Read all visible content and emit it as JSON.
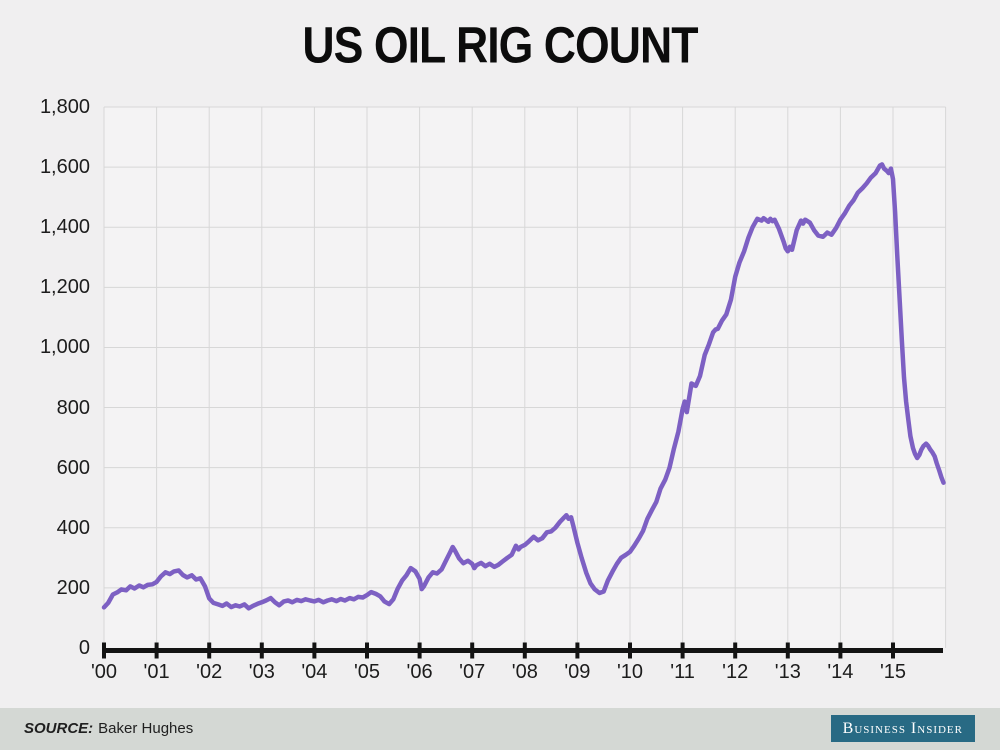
{
  "chart_data": {
    "type": "line",
    "title": "US OIL RIG COUNT",
    "xlabel": "",
    "ylabel": "",
    "x_domain": [
      2000,
      2016
    ],
    "ylim": [
      0,
      1800
    ],
    "grid": true,
    "legend": "none",
    "colors": {
      "line": "#7d60c3",
      "grid": "#d7d7d7",
      "axis": "#131313",
      "plot_bg": "#f4f3f4"
    },
    "y_ticks": [
      {
        "value": 0,
        "label": "0"
      },
      {
        "value": 200,
        "label": "200"
      },
      {
        "value": 400,
        "label": "400"
      },
      {
        "value": 600,
        "label": "600"
      },
      {
        "value": 800,
        "label": "800"
      },
      {
        "value": 1000,
        "label": "1,000"
      },
      {
        "value": 1200,
        "label": "1,200"
      },
      {
        "value": 1400,
        "label": "1,400"
      },
      {
        "value": 1600,
        "label": "1,600"
      },
      {
        "value": 1800,
        "label": "1,800"
      }
    ],
    "x_ticks": [
      {
        "value": 2000,
        "label": "'00"
      },
      {
        "value": 2001,
        "label": "'01"
      },
      {
        "value": 2002,
        "label": "'02"
      },
      {
        "value": 2003,
        "label": "'03"
      },
      {
        "value": 2004,
        "label": "'04"
      },
      {
        "value": 2005,
        "label": "'05"
      },
      {
        "value": 2006,
        "label": "'06"
      },
      {
        "value": 2007,
        "label": "'07"
      },
      {
        "value": 2008,
        "label": "'08"
      },
      {
        "value": 2009,
        "label": "'09"
      },
      {
        "value": 2010,
        "label": "'10"
      },
      {
        "value": 2011,
        "label": "'11"
      },
      {
        "value": 2012,
        "label": "'12"
      },
      {
        "value": 2013,
        "label": "'13"
      },
      {
        "value": 2014,
        "label": "'14"
      },
      {
        "value": 2015,
        "label": "'15"
      }
    ],
    "series": [
      {
        "name": "US oil rig count",
        "points": [
          [
            2000.0,
            135
          ],
          [
            2000.08,
            150
          ],
          [
            2000.17,
            178
          ],
          [
            2000.25,
            185
          ],
          [
            2000.33,
            195
          ],
          [
            2000.42,
            192
          ],
          [
            2000.5,
            205
          ],
          [
            2000.58,
            198
          ],
          [
            2000.67,
            208
          ],
          [
            2000.75,
            202
          ],
          [
            2000.83,
            210
          ],
          [
            2000.92,
            212
          ],
          [
            2001.0,
            220
          ],
          [
            2001.08,
            238
          ],
          [
            2001.17,
            252
          ],
          [
            2001.25,
            246
          ],
          [
            2001.33,
            255
          ],
          [
            2001.42,
            258
          ],
          [
            2001.5,
            243
          ],
          [
            2001.58,
            235
          ],
          [
            2001.67,
            242
          ],
          [
            2001.75,
            228
          ],
          [
            2001.83,
            232
          ],
          [
            2001.92,
            205
          ],
          [
            2002.0,
            165
          ],
          [
            2002.08,
            150
          ],
          [
            2002.17,
            145
          ],
          [
            2002.25,
            140
          ],
          [
            2002.33,
            148
          ],
          [
            2002.42,
            136
          ],
          [
            2002.5,
            142
          ],
          [
            2002.58,
            138
          ],
          [
            2002.67,
            145
          ],
          [
            2002.75,
            132
          ],
          [
            2002.83,
            140
          ],
          [
            2002.92,
            147
          ],
          [
            2003.0,
            152
          ],
          [
            2003.08,
            158
          ],
          [
            2003.17,
            166
          ],
          [
            2003.25,
            152
          ],
          [
            2003.33,
            142
          ],
          [
            2003.42,
            155
          ],
          [
            2003.5,
            158
          ],
          [
            2003.58,
            152
          ],
          [
            2003.67,
            160
          ],
          [
            2003.75,
            156
          ],
          [
            2003.83,
            162
          ],
          [
            2003.92,
            158
          ],
          [
            2004.0,
            155
          ],
          [
            2004.08,
            160
          ],
          [
            2004.17,
            152
          ],
          [
            2004.25,
            158
          ],
          [
            2004.33,
            162
          ],
          [
            2004.42,
            156
          ],
          [
            2004.5,
            163
          ],
          [
            2004.58,
            158
          ],
          [
            2004.67,
            166
          ],
          [
            2004.75,
            162
          ],
          [
            2004.83,
            170
          ],
          [
            2004.92,
            168
          ],
          [
            2005.0,
            176
          ],
          [
            2005.08,
            186
          ],
          [
            2005.17,
            180
          ],
          [
            2005.25,
            172
          ],
          [
            2005.33,
            155
          ],
          [
            2005.42,
            146
          ],
          [
            2005.5,
            162
          ],
          [
            2005.58,
            196
          ],
          [
            2005.67,
            225
          ],
          [
            2005.75,
            242
          ],
          [
            2005.83,
            266
          ],
          [
            2005.92,
            255
          ],
          [
            2006.0,
            230
          ],
          [
            2006.04,
            196
          ],
          [
            2006.08,
            205
          ],
          [
            2006.17,
            235
          ],
          [
            2006.25,
            252
          ],
          [
            2006.33,
            248
          ],
          [
            2006.42,
            262
          ],
          [
            2006.5,
            290
          ],
          [
            2006.58,
            318
          ],
          [
            2006.63,
            336
          ],
          [
            2006.67,
            325
          ],
          [
            2006.75,
            298
          ],
          [
            2006.83,
            282
          ],
          [
            2006.92,
            290
          ],
          [
            2007.0,
            280
          ],
          [
            2007.04,
            266
          ],
          [
            2007.08,
            275
          ],
          [
            2007.17,
            283
          ],
          [
            2007.25,
            272
          ],
          [
            2007.33,
            280
          ],
          [
            2007.42,
            270
          ],
          [
            2007.5,
            277
          ],
          [
            2007.58,
            288
          ],
          [
            2007.67,
            300
          ],
          [
            2007.75,
            310
          ],
          [
            2007.83,
            340
          ],
          [
            2007.88,
            328
          ],
          [
            2007.92,
            336
          ],
          [
            2008.0,
            343
          ],
          [
            2008.08,
            355
          ],
          [
            2008.17,
            370
          ],
          [
            2008.25,
            358
          ],
          [
            2008.33,
            365
          ],
          [
            2008.42,
            385
          ],
          [
            2008.5,
            388
          ],
          [
            2008.58,
            400
          ],
          [
            2008.67,
            420
          ],
          [
            2008.75,
            435
          ],
          [
            2008.79,
            442
          ],
          [
            2008.83,
            430
          ],
          [
            2008.88,
            435
          ],
          [
            2008.92,
            408
          ],
          [
            2009.0,
            350
          ],
          [
            2009.08,
            300
          ],
          [
            2009.17,
            250
          ],
          [
            2009.25,
            215
          ],
          [
            2009.33,
            195
          ],
          [
            2009.42,
            183
          ],
          [
            2009.5,
            188
          ],
          [
            2009.58,
            225
          ],
          [
            2009.67,
            255
          ],
          [
            2009.75,
            280
          ],
          [
            2009.83,
            300
          ],
          [
            2009.92,
            310
          ],
          [
            2010.0,
            320
          ],
          [
            2010.08,
            340
          ],
          [
            2010.17,
            365
          ],
          [
            2010.25,
            390
          ],
          [
            2010.33,
            430
          ],
          [
            2010.42,
            460
          ],
          [
            2010.5,
            486
          ],
          [
            2010.58,
            530
          ],
          [
            2010.67,
            560
          ],
          [
            2010.75,
            600
          ],
          [
            2010.83,
            660
          ],
          [
            2010.92,
            720
          ],
          [
            2011.0,
            795
          ],
          [
            2011.04,
            820
          ],
          [
            2011.08,
            785
          ],
          [
            2011.17,
            880
          ],
          [
            2011.25,
            872
          ],
          [
            2011.33,
            905
          ],
          [
            2011.42,
            975
          ],
          [
            2011.5,
            1010
          ],
          [
            2011.58,
            1050
          ],
          [
            2011.63,
            1060
          ],
          [
            2011.67,
            1062
          ],
          [
            2011.75,
            1090
          ],
          [
            2011.83,
            1110
          ],
          [
            2011.92,
            1160
          ],
          [
            2012.0,
            1235
          ],
          [
            2012.08,
            1282
          ],
          [
            2012.17,
            1320
          ],
          [
            2012.25,
            1365
          ],
          [
            2012.33,
            1400
          ],
          [
            2012.42,
            1428
          ],
          [
            2012.5,
            1422
          ],
          [
            2012.54,
            1430
          ],
          [
            2012.58,
            1425
          ],
          [
            2012.63,
            1418
          ],
          [
            2012.67,
            1428
          ],
          [
            2012.71,
            1420
          ],
          [
            2012.75,
            1425
          ],
          [
            2012.83,
            1395
          ],
          [
            2012.92,
            1352
          ],
          [
            2012.96,
            1330
          ],
          [
            2013.0,
            1320
          ],
          [
            2013.04,
            1335
          ],
          [
            2013.08,
            1325
          ],
          [
            2013.17,
            1390
          ],
          [
            2013.25,
            1422
          ],
          [
            2013.29,
            1412
          ],
          [
            2013.33,
            1425
          ],
          [
            2013.42,
            1415
          ],
          [
            2013.5,
            1390
          ],
          [
            2013.58,
            1372
          ],
          [
            2013.67,
            1368
          ],
          [
            2013.75,
            1382
          ],
          [
            2013.83,
            1375
          ],
          [
            2013.92,
            1398
          ],
          [
            2014.0,
            1425
          ],
          [
            2014.08,
            1445
          ],
          [
            2014.17,
            1472
          ],
          [
            2014.25,
            1490
          ],
          [
            2014.33,
            1515
          ],
          [
            2014.42,
            1530
          ],
          [
            2014.5,
            1546
          ],
          [
            2014.58,
            1565
          ],
          [
            2014.67,
            1580
          ],
          [
            2014.75,
            1605
          ],
          [
            2014.79,
            1609
          ],
          [
            2014.83,
            1595
          ],
          [
            2014.88,
            1588
          ],
          [
            2014.92,
            1580
          ],
          [
            2014.96,
            1595
          ],
          [
            2015.0,
            1560
          ],
          [
            2015.04,
            1450
          ],
          [
            2015.08,
            1310
          ],
          [
            2015.13,
            1150
          ],
          [
            2015.17,
            1020
          ],
          [
            2015.21,
            900
          ],
          [
            2015.25,
            820
          ],
          [
            2015.29,
            760
          ],
          [
            2015.33,
            705
          ],
          [
            2015.38,
            665
          ],
          [
            2015.42,
            645
          ],
          [
            2015.46,
            632
          ],
          [
            2015.5,
            642
          ],
          [
            2015.54,
            660
          ],
          [
            2015.58,
            672
          ],
          [
            2015.63,
            680
          ],
          [
            2015.67,
            672
          ],
          [
            2015.71,
            660
          ],
          [
            2015.75,
            650
          ],
          [
            2015.79,
            638
          ],
          [
            2015.83,
            615
          ],
          [
            2015.88,
            590
          ],
          [
            2015.92,
            568
          ],
          [
            2015.96,
            550
          ]
        ]
      }
    ]
  },
  "footer": {
    "source_label": "SOURCE:",
    "source_value": "Baker Hughes",
    "logo_text": "Business Insider"
  }
}
